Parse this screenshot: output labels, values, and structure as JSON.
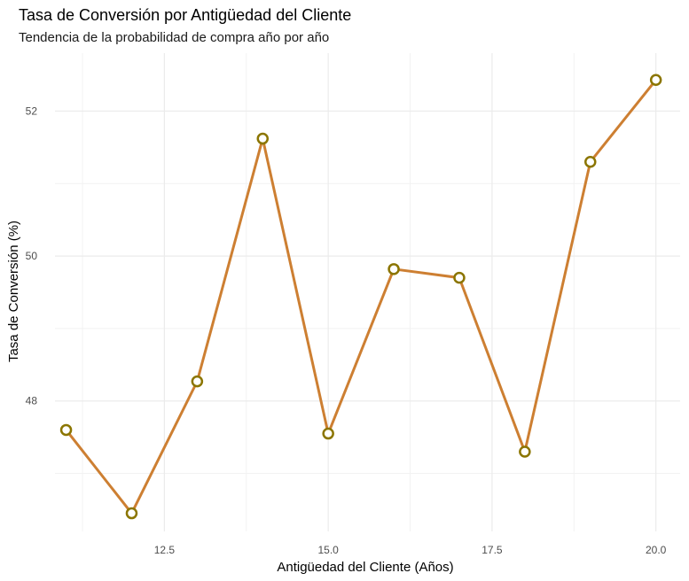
{
  "chart_data": {
    "type": "line",
    "title": "Tasa de Conversión por Antigüedad del Cliente",
    "subtitle": "Tendencia de la probabilidad de compra año por año",
    "xlabel": "Antigüedad del Cliente (Años)",
    "ylabel": "Tasa de Conversión (%)",
    "x": [
      11,
      12,
      13,
      14,
      15,
      16,
      17,
      18,
      19,
      20
    ],
    "series": [
      {
        "values": [
          47.6,
          46.45,
          48.27,
          51.62,
          47.55,
          49.82,
          49.7,
          47.3,
          51.3,
          52.43
        ]
      }
    ],
    "xlim": [
      10.83,
      20.37
    ],
    "ylim": [
      46.2,
      52.8
    ],
    "x_ticks": [
      12.5,
      15.0,
      17.5,
      20.0
    ],
    "x_tick_labels": [
      "12.5",
      "15.0",
      "17.5",
      "20.0"
    ],
    "y_ticks": [
      48,
      50,
      52
    ],
    "y_tick_labels": [
      "48",
      "50",
      "52"
    ],
    "grid": true,
    "legend": "none",
    "colors": {
      "line": "#CD7F32",
      "marker_stroke": "#8B7500",
      "marker_fill": "#ffffff",
      "grid_major": "#ebebeb",
      "grid_minor": "#f2f2f2"
    }
  }
}
